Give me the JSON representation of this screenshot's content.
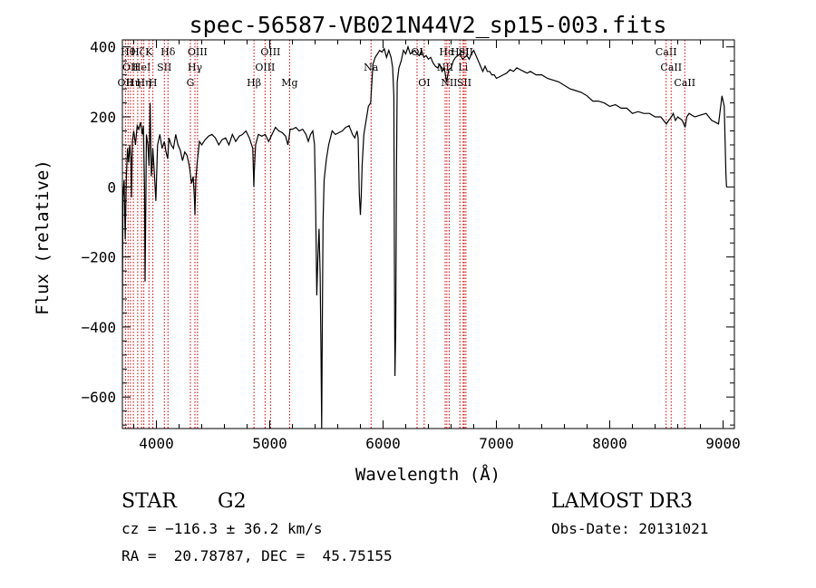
{
  "chart_data": {
    "type": "line",
    "title": "spec-56587-VB021N44V2_sp15-003.fits",
    "xlabel": "Wavelength (Å)",
    "ylabel": "Flux (relative)",
    "xlim": [
      3700,
      9100
    ],
    "ylim": [
      -690,
      420
    ],
    "xticks": [
      4000,
      5000,
      6000,
      7000,
      8000,
      9000
    ],
    "xtick_labels": [
      "4000",
      "5000",
      "6000",
      "7000",
      "8000",
      "9000"
    ],
    "yticks": [
      -600,
      -400,
      -200,
      0,
      200,
      400
    ],
    "ytick_labels": [
      "−600",
      "−400",
      "−200",
      "0",
      "200",
      "400"
    ],
    "grid": false,
    "series": [
      {
        "name": "spectrum",
        "points": [
          [
            3700,
            -350
          ],
          [
            3705,
            -30
          ],
          [
            3715,
            20
          ],
          [
            3725,
            -150
          ],
          [
            3735,
            30
          ],
          [
            3745,
            110
          ],
          [
            3755,
            70
          ],
          [
            3765,
            120
          ],
          [
            3775,
            80
          ],
          [
            3780,
            -30
          ],
          [
            3788,
            130
          ],
          [
            3800,
            160
          ],
          [
            3815,
            120
          ],
          [
            3830,
            175
          ],
          [
            3845,
            165
          ],
          [
            3860,
            185
          ],
          [
            3875,
            150
          ],
          [
            3885,
            175
          ],
          [
            3895,
            0
          ],
          [
            3900,
            -270
          ],
          [
            3905,
            -120
          ],
          [
            3912,
            150
          ],
          [
            3925,
            120
          ],
          [
            3935,
            60
          ],
          [
            3945,
            240
          ],
          [
            3955,
            30
          ],
          [
            3962,
            60
          ],
          [
            3968,
            110
          ],
          [
            3980,
            50
          ],
          [
            3995,
            -40
          ],
          [
            4010,
            120
          ],
          [
            4030,
            150
          ],
          [
            4050,
            110
          ],
          [
            4070,
            130
          ],
          [
            4085,
            100
          ],
          [
            4100,
            80
          ],
          [
            4110,
            140
          ],
          [
            4130,
            120
          ],
          [
            4150,
            110
          ],
          [
            4170,
            150
          ],
          [
            4190,
            120
          ],
          [
            4210,
            105
          ],
          [
            4230,
            75
          ],
          [
            4250,
            100
          ],
          [
            4270,
            90
          ],
          [
            4290,
            60
          ],
          [
            4310,
            10
          ],
          [
            4325,
            30
          ],
          [
            4335,
            -30
          ],
          [
            4340,
            -80
          ],
          [
            4348,
            20
          ],
          [
            4360,
            70
          ],
          [
            4380,
            130
          ],
          [
            4400,
            120
          ],
          [
            4430,
            135
          ],
          [
            4460,
            145
          ],
          [
            4490,
            150
          ],
          [
            4520,
            140
          ],
          [
            4550,
            120
          ],
          [
            4580,
            135
          ],
          [
            4610,
            140
          ],
          [
            4640,
            120
          ],
          [
            4670,
            150
          ],
          [
            4700,
            130
          ],
          [
            4730,
            145
          ],
          [
            4760,
            150
          ],
          [
            4790,
            160
          ],
          [
            4820,
            140
          ],
          [
            4850,
            110
          ],
          [
            4860,
            0
          ],
          [
            4863,
            40
          ],
          [
            4875,
            120
          ],
          [
            4900,
            150
          ],
          [
            4930,
            145
          ],
          [
            4960,
            150
          ],
          [
            4990,
            130
          ],
          [
            5020,
            150
          ],
          [
            5050,
            170
          ],
          [
            5080,
            160
          ],
          [
            5110,
            155
          ],
          [
            5140,
            145
          ],
          [
            5160,
            120
          ],
          [
            5170,
            140
          ],
          [
            5180,
            165
          ],
          [
            5200,
            165
          ],
          [
            5230,
            170
          ],
          [
            5260,
            160
          ],
          [
            5290,
            165
          ],
          [
            5320,
            150
          ],
          [
            5340,
            130
          ],
          [
            5360,
            150
          ],
          [
            5380,
            160
          ],
          [
            5395,
            120
          ],
          [
            5405,
            -50
          ],
          [
            5415,
            -310
          ],
          [
            5425,
            -200
          ],
          [
            5435,
            -120
          ],
          [
            5445,
            -250
          ],
          [
            5452,
            -460
          ],
          [
            5458,
            -690
          ],
          [
            5463,
            -430
          ],
          [
            5470,
            -100
          ],
          [
            5480,
            20
          ],
          [
            5500,
            80
          ],
          [
            5520,
            120
          ],
          [
            5550,
            160
          ],
          [
            5580,
            150
          ],
          [
            5610,
            155
          ],
          [
            5640,
            160
          ],
          [
            5670,
            170
          ],
          [
            5700,
            175
          ],
          [
            5730,
            150
          ],
          [
            5750,
            140
          ],
          [
            5770,
            160
          ],
          [
            5780,
            140
          ],
          [
            5790,
            -20
          ],
          [
            5800,
            -80
          ],
          [
            5808,
            -20
          ],
          [
            5815,
            60
          ],
          [
            5830,
            150
          ],
          [
            5850,
            190
          ],
          [
            5870,
            230
          ],
          [
            5890,
            240
          ],
          [
            5910,
            350
          ],
          [
            5930,
            370
          ],
          [
            5950,
            380
          ],
          [
            5970,
            390
          ],
          [
            5990,
            385
          ],
          [
            6010,
            395
          ],
          [
            6030,
            370
          ],
          [
            6050,
            390
          ],
          [
            6070,
            370
          ],
          [
            6085,
            340
          ],
          [
            6095,
            260
          ],
          [
            6100,
            -200
          ],
          [
            6105,
            -540
          ],
          [
            6112,
            -400
          ],
          [
            6118,
            50
          ],
          [
            6125,
            300
          ],
          [
            6140,
            340
          ],
          [
            6160,
            360
          ],
          [
            6180,
            390
          ],
          [
            6200,
            380
          ],
          [
            6220,
            400
          ],
          [
            6240,
            380
          ],
          [
            6260,
            385
          ],
          [
            6280,
            390
          ],
          [
            6300,
            380
          ],
          [
            6320,
            375
          ],
          [
            6340,
            390
          ],
          [
            6360,
            370
          ],
          [
            6380,
            375
          ],
          [
            6400,
            365
          ],
          [
            6420,
            370
          ],
          [
            6440,
            355
          ],
          [
            6460,
            345
          ],
          [
            6480,
            340
          ],
          [
            6500,
            350
          ],
          [
            6520,
            330
          ],
          [
            6540,
            340
          ],
          [
            6560,
            300
          ],
          [
            6580,
            335
          ],
          [
            6600,
            340
          ],
          [
            6620,
            360
          ],
          [
            6640,
            370
          ],
          [
            6660,
            375
          ],
          [
            6680,
            380
          ],
          [
            6700,
            365
          ],
          [
            6720,
            370
          ],
          [
            6740,
            375
          ],
          [
            6760,
            365
          ],
          [
            6780,
            380
          ],
          [
            6800,
            390
          ],
          [
            6820,
            375
          ],
          [
            6840,
            360
          ],
          [
            6860,
            345
          ],
          [
            6880,
            330
          ],
          [
            6900,
            345
          ],
          [
            6920,
            330
          ],
          [
            6940,
            330
          ],
          [
            6960,
            320
          ],
          [
            6980,
            320
          ],
          [
            7000,
            310
          ],
          [
            7030,
            315
          ],
          [
            7060,
            320
          ],
          [
            7090,
            325
          ],
          [
            7120,
            335
          ],
          [
            7150,
            330
          ],
          [
            7180,
            340
          ],
          [
            7210,
            335
          ],
          [
            7240,
            330
          ],
          [
            7270,
            325
          ],
          [
            7300,
            330
          ],
          [
            7350,
            320
          ],
          [
            7400,
            320
          ],
          [
            7450,
            310
          ],
          [
            7500,
            305
          ],
          [
            7550,
            300
          ],
          [
            7600,
            290
          ],
          [
            7650,
            280
          ],
          [
            7700,
            275
          ],
          [
            7750,
            270
          ],
          [
            7800,
            260
          ],
          [
            7850,
            245
          ],
          [
            7900,
            245
          ],
          [
            7950,
            240
          ],
          [
            8000,
            230
          ],
          [
            8050,
            235
          ],
          [
            8100,
            225
          ],
          [
            8150,
            225
          ],
          [
            8200,
            210
          ],
          [
            8250,
            215
          ],
          [
            8300,
            210
          ],
          [
            8350,
            210
          ],
          [
            8400,
            200
          ],
          [
            8450,
            200
          ],
          [
            8500,
            180
          ],
          [
            8520,
            190
          ],
          [
            8545,
            200
          ],
          [
            8560,
            210
          ],
          [
            8580,
            190
          ],
          [
            8600,
            200
          ],
          [
            8640,
            190
          ],
          [
            8660,
            175
          ],
          [
            8665,
            170
          ],
          [
            8680,
            200
          ],
          [
            8700,
            210
          ],
          [
            8750,
            200
          ],
          [
            8800,
            205
          ],
          [
            8850,
            210
          ],
          [
            8900,
            190
          ],
          [
            8930,
            185
          ],
          [
            8960,
            180
          ],
          [
            8990,
            260
          ],
          [
            9010,
            230
          ],
          [
            9025,
            40
          ],
          [
            9030,
            0
          ]
        ]
      }
    ],
    "line_markers": [
      {
        "wavelength": 3727,
        "label": "OII",
        "row": 2
      },
      {
        "wavelength": 3750,
        "label": "Hθ",
        "row": 0
      },
      {
        "wavelength": 3771,
        "label": "OII",
        "row": 1
      },
      {
        "wavelength": 3797,
        "label": "Hη",
        "row": 2
      },
      {
        "wavelength": 3835,
        "label": "Hζ",
        "row": 0
      },
      {
        "wavelength": 3869,
        "label": "HeI",
        "row": 1
      },
      {
        "wavelength": 3889,
        "label": "Hη",
        "row": 2
      },
      {
        "wavelength": 3934,
        "label": "K",
        "row": 0
      },
      {
        "wavelength": 3969,
        "label": "H",
        "row": 2
      },
      {
        "wavelength": 4070,
        "label": "SII",
        "row": 1
      },
      {
        "wavelength": 4102,
        "label": "Hδ",
        "row": 0
      },
      {
        "wavelength": 4300,
        "label": "G",
        "row": 2
      },
      {
        "wavelength": 4340,
        "label": "Hγ",
        "row": 1
      },
      {
        "wavelength": 4363,
        "label": "OIII",
        "row": 0
      },
      {
        "wavelength": 4861,
        "label": "Hβ",
        "row": 2
      },
      {
        "wavelength": 4959,
        "label": "OIII",
        "row": 1
      },
      {
        "wavelength": 5007,
        "label": "OIII",
        "row": 0
      },
      {
        "wavelength": 5175,
        "label": "Mg",
        "row": 2
      },
      {
        "wavelength": 5894,
        "label": "Na",
        "row": 1
      },
      {
        "wavelength": 6300,
        "label": "OI",
        "row": 0
      },
      {
        "wavelength": 6363,
        "label": "OI",
        "row": 2
      },
      {
        "wavelength": 6548,
        "label": "NII",
        "row": 1
      },
      {
        "wavelength": 6563,
        "label": "Hα",
        "row": 0
      },
      {
        "wavelength": 6583,
        "label": "NII",
        "row": 2
      },
      {
        "wavelength": 6678,
        "label": "HeI",
        "row": 0
      },
      {
        "wavelength": 6707,
        "label": "Li",
        "row": 1
      },
      {
        "wavelength": 6716,
        "label": "SII",
        "row": 2
      },
      {
        "wavelength": 6731,
        "label": "SII",
        "row": 0
      },
      {
        "wavelength": 8498,
        "label": "CaII",
        "row": 0
      },
      {
        "wavelength": 8542,
        "label": "CaII",
        "row": 1
      },
      {
        "wavelength": 8662,
        "label": "CaII",
        "row": 2
      }
    ],
    "marker_color": "#cc0000",
    "line_color": "#000000"
  },
  "info": {
    "object_class": "STAR",
    "subclass": "G2",
    "survey": "LAMOST DR3",
    "redshift": "cz = −116.3 ± 36.2 km/s",
    "obs_date": "Obs-Date: 20131021",
    "coords": "RA =  20.78787, DEC =  45.75155"
  }
}
